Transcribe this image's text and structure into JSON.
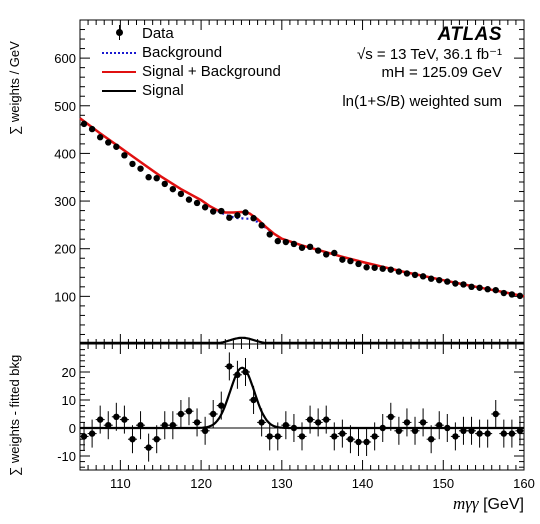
{
  "chart_data": [
    {
      "type": "scatter",
      "panel": "top",
      "ylabel": "∑ weights / GeV",
      "xlim": [
        105,
        160
      ],
      "ylim": [
        0,
        680
      ],
      "yticks": [
        100,
        200,
        300,
        400,
        500,
        600
      ],
      "grid": false,
      "legend_position": "top-left",
      "legend": [
        "Data",
        "Background",
        "Signal + Background",
        "Signal"
      ],
      "annotations": [
        "ATLAS",
        "√s = 13 TeV, 36.1 fb⁻¹",
        "mH = 125.09 GeV",
        "ln(1+S/B) weighted sum"
      ],
      "series": [
        {
          "name": "Data",
          "x": [
            105.5,
            106.5,
            107.5,
            108.5,
            109.5,
            110.5,
            111.5,
            112.5,
            113.5,
            114.5,
            115.5,
            116.5,
            117.5,
            118.5,
            119.5,
            120.5,
            121.5,
            122.5,
            123.5,
            124.5,
            125.5,
            126.5,
            127.5,
            128.5,
            129.5,
            130.5,
            131.5,
            132.5,
            133.5,
            134.5,
            135.5,
            136.5,
            137.5,
            138.5,
            139.5,
            140.5,
            141.5,
            142.5,
            143.5,
            144.5,
            145.5,
            146.5,
            147.5,
            148.5,
            149.5,
            150.5,
            151.5,
            152.5,
            153.5,
            154.5,
            155.5,
            156.5,
            157.5,
            158.5,
            159.5
          ],
          "y": [
            462,
            451,
            434,
            423,
            414,
            396,
            378,
            368,
            350,
            348,
            336,
            325,
            315,
            303,
            296,
            287,
            278,
            279,
            265,
            270,
            276,
            264,
            249,
            230,
            216,
            214,
            210,
            202,
            204,
            196,
            188,
            191,
            177,
            174,
            168,
            161,
            160,
            158,
            156,
            152,
            148,
            145,
            142,
            137,
            134,
            131,
            127,
            125,
            120,
            118,
            115,
            113,
            107,
            104,
            101
          ],
          "y_err_approx": 4
        },
        {
          "name": "Background",
          "style": "blue dotted line",
          "x_range": [
            120,
            129
          ]
        },
        {
          "name": "Signal + Background",
          "style": "red solid line",
          "x": [
            105,
            107.5,
            110,
            112.5,
            115,
            117.5,
            120,
            121,
            122,
            123,
            124,
            125,
            126,
            127,
            128,
            129,
            130,
            132.5,
            135,
            137.5,
            140,
            142.5,
            145,
            147.5,
            150,
            152.5,
            155,
            157.5,
            160
          ],
          "y": [
            474,
            442,
            412,
            382,
            352,
            325,
            302,
            290,
            281,
            276,
            276,
            277,
            274,
            262,
            246,
            232,
            221,
            207,
            195,
            183,
            172,
            162,
            152,
            143,
            134,
            125,
            117,
            109,
            100
          ]
        },
        {
          "name": "Signal",
          "style": "black solid line",
          "peak_x": 125.09,
          "peak_y": 13,
          "sigma": 1.5
        }
      ]
    },
    {
      "type": "scatter",
      "panel": "bottom",
      "ylabel": "∑ weights - fitted bkg",
      "xlabel": "mγγ [GeV]",
      "xlim": [
        105,
        160
      ],
      "ylim": [
        -15,
        30
      ],
      "yticks": [
        -10,
        0,
        10,
        20
      ],
      "xticks": [
        110,
        120,
        130,
        140,
        150,
        160
      ],
      "series": [
        {
          "name": "Data",
          "x": [
            105.5,
            106.5,
            107.5,
            108.5,
            109.5,
            110.5,
            111.5,
            112.5,
            113.5,
            114.5,
            115.5,
            116.5,
            117.5,
            118.5,
            119.5,
            120.5,
            121.5,
            122.5,
            123.5,
            124.5,
            125.5,
            126.5,
            127.5,
            128.5,
            129.5,
            130.5,
            131.5,
            132.5,
            133.5,
            134.5,
            135.5,
            136.5,
            137.5,
            138.5,
            139.5,
            140.5,
            141.5,
            142.5,
            143.5,
            144.5,
            145.5,
            146.5,
            147.5,
            148.5,
            149.5,
            150.5,
            151.5,
            152.5,
            153.5,
            154.5,
            155.5,
            156.5,
            157.5,
            158.5,
            159.5
          ],
          "y": [
            -3,
            -2,
            3,
            1,
            4,
            3,
            -4,
            1,
            -7,
            -4,
            1,
            1,
            5,
            6,
            2,
            -1,
            5,
            8,
            22,
            19,
            20,
            10,
            2,
            -3,
            -3,
            1,
            0,
            -3,
            3,
            2,
            3,
            -3,
            -2,
            -4,
            -5,
            -5,
            -3,
            0,
            4,
            -1,
            2,
            -1,
            2,
            -4,
            1,
            0,
            -3,
            -1,
            -1,
            -2,
            -2,
            5,
            -2,
            -2,
            -1
          ],
          "y_err": [
            5,
            5,
            5,
            5,
            5,
            5,
            5,
            5,
            5,
            5,
            5,
            5,
            5,
            5,
            5,
            5,
            5,
            5,
            5,
            5,
            5,
            5,
            5,
            5,
            5,
            5,
            5,
            5,
            5,
            5,
            5,
            5,
            5,
            5,
            5,
            5,
            5,
            5,
            5,
            5,
            5,
            5,
            5,
            5,
            5,
            5,
            5,
            5,
            5,
            5,
            5,
            5,
            5,
            5,
            5
          ]
        },
        {
          "name": "Signal fit",
          "style": "black solid line",
          "peak_x": 125.09,
          "peak_y": 21.5,
          "sigma": 1.5
        }
      ]
    }
  ],
  "legend": {
    "items": [
      {
        "label": "Data",
        "kind": "data"
      },
      {
        "label": "Background",
        "kind": "bkg"
      },
      {
        "label": "Signal + Background",
        "kind": "sb"
      },
      {
        "label": "Signal",
        "kind": "sig"
      }
    ]
  },
  "info": {
    "atlas": "ATLAS",
    "energy": "√s = 13 TeV, 36.1 fb⁻¹",
    "mass": "mH = 125.09 GeV",
    "method": "ln(1+S/B) weighted sum"
  },
  "axes": {
    "top_ylabel": "∑ weights / GeV",
    "bottom_ylabel": "∑ weights - fitted bkg",
    "xlabel_var": "mγγ",
    "xlabel_unit": "[GeV]"
  },
  "colors": {
    "data": "#000000",
    "background": "#1a1ad0",
    "signal_plus_background": "#e01010",
    "signal": "#000000"
  }
}
